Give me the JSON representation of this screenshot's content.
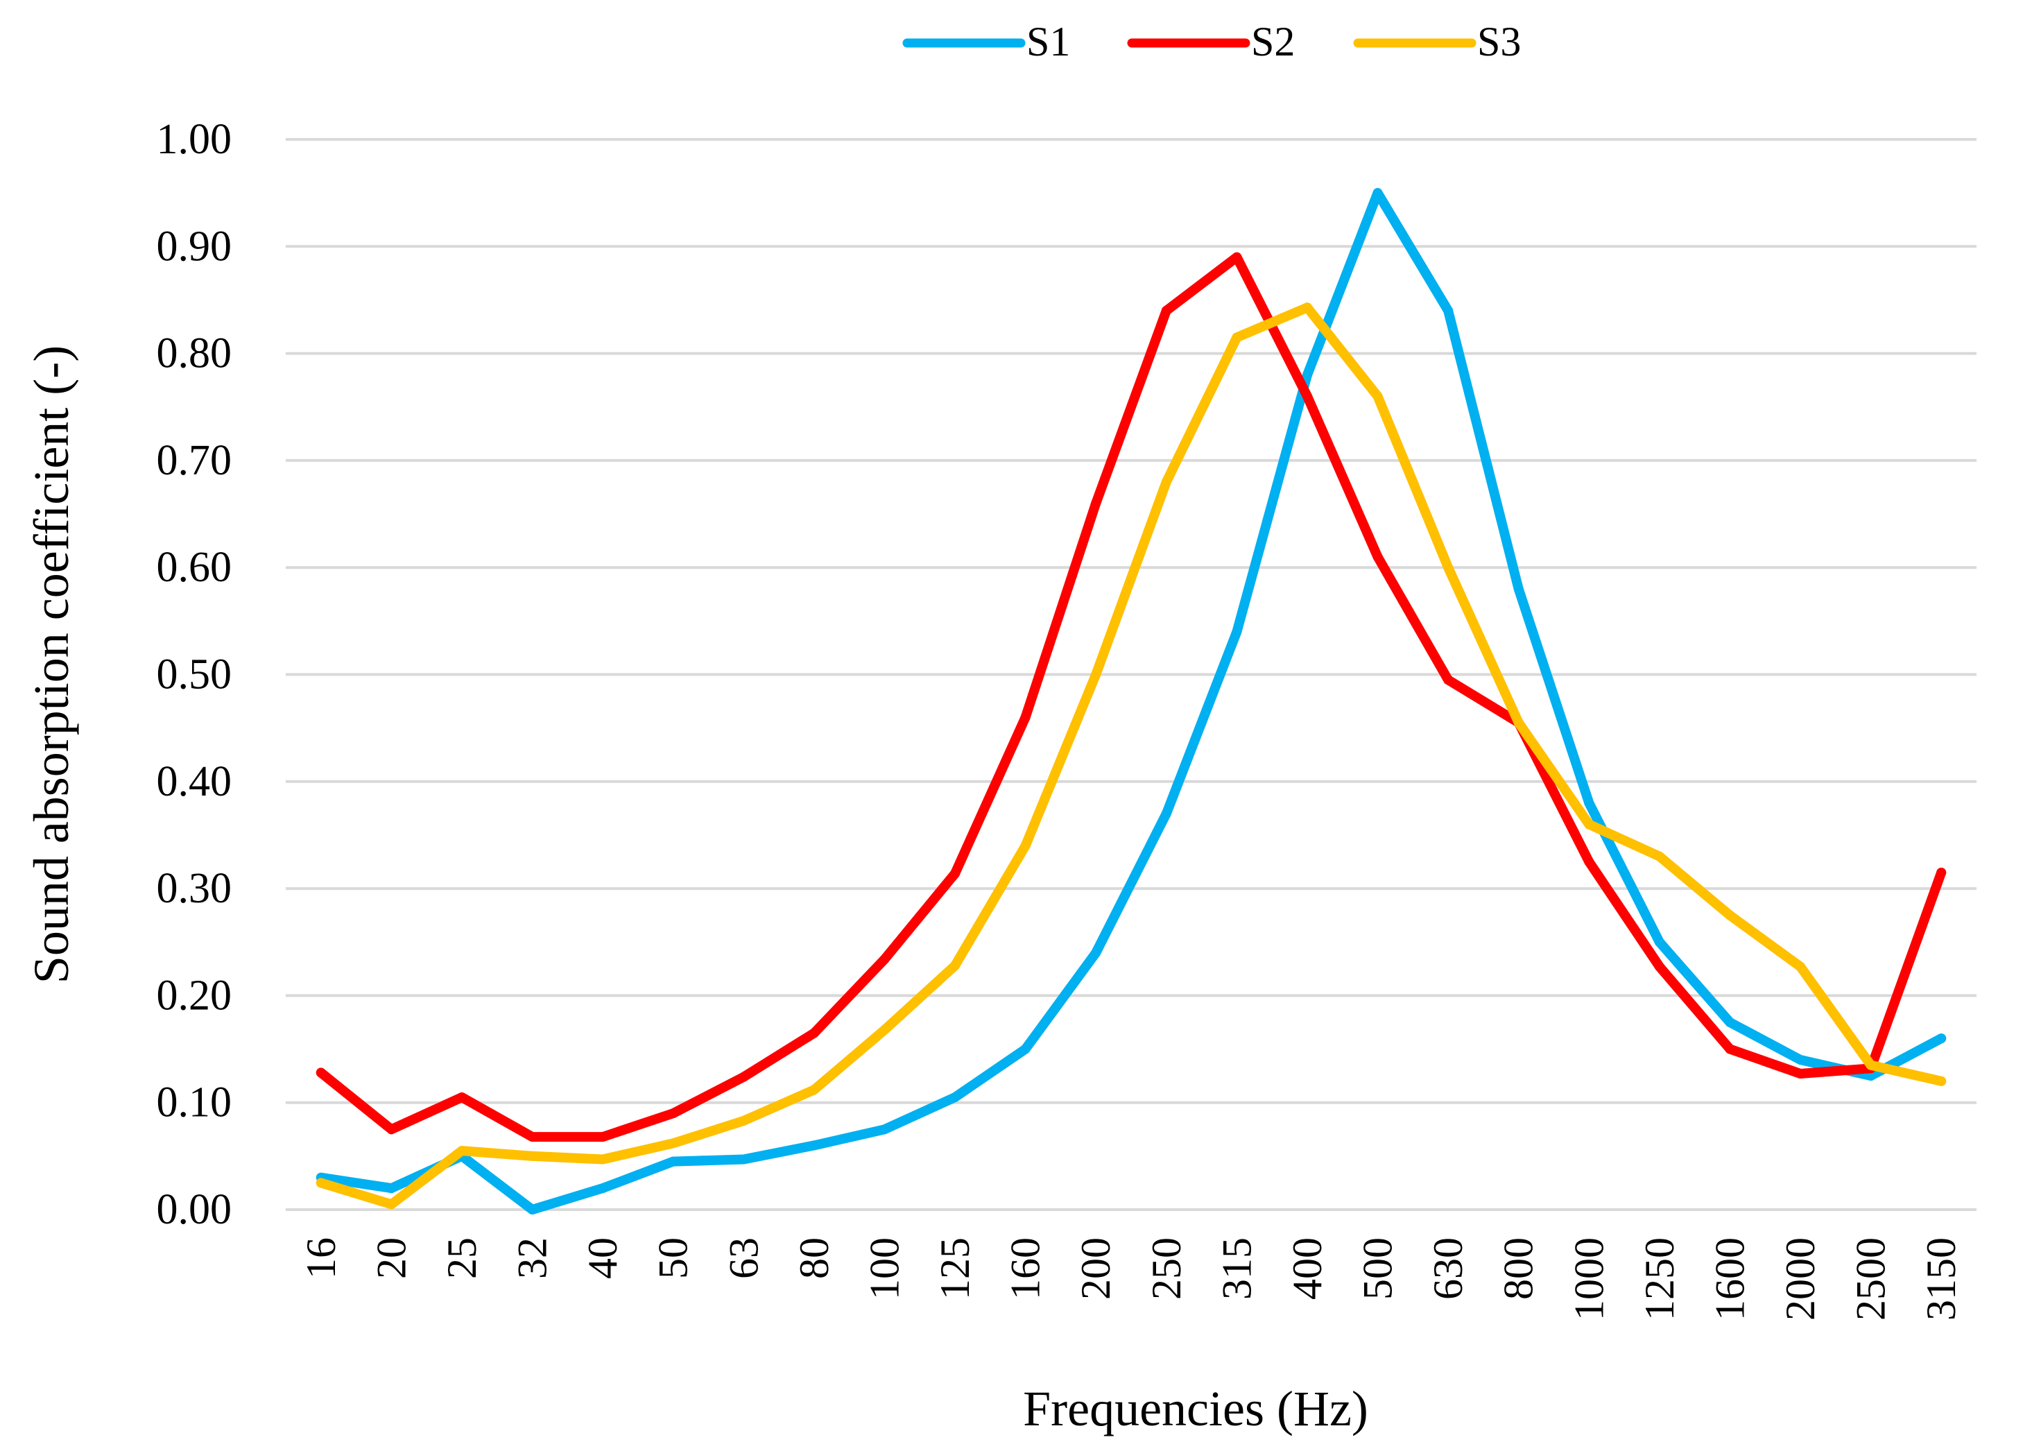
{
  "chart_data": {
    "type": "line",
    "title": "",
    "xlabel": "Frequencies (Hz)",
    "ylabel": "Sound absorption coefficient (-)",
    "ylim": [
      0,
      1
    ],
    "ytick_labels": [
      "0.00",
      "0.10",
      "0.20",
      "0.30",
      "0.40",
      "0.50",
      "0.60",
      "0.70",
      "0.80",
      "0.90",
      "1.00"
    ],
    "grid": true,
    "legend_position": "top-center",
    "categories": [
      "16",
      "20",
      "25",
      "32",
      "40",
      "50",
      "63",
      "80",
      "100",
      "125",
      "160",
      "200",
      "250",
      "315",
      "400",
      "500",
      "630",
      "800",
      "1000",
      "1250",
      "1600",
      "2000",
      "2500",
      "3150"
    ],
    "series": [
      {
        "name": "S1",
        "color": "#00b0f0",
        "values": [
          0.03,
          0.02,
          0.05,
          0.0,
          0.02,
          0.045,
          0.047,
          0.06,
          0.075,
          0.105,
          0.15,
          0.24,
          0.37,
          0.54,
          0.78,
          0.95,
          0.84,
          0.58,
          0.38,
          0.25,
          0.175,
          0.14,
          0.125,
          0.16
        ]
      },
      {
        "name": "S2",
        "color": "#ff0000",
        "values": [
          0.128,
          0.075,
          0.105,
          0.068,
          0.068,
          0.09,
          0.124,
          0.165,
          0.234,
          0.314,
          0.46,
          0.66,
          0.84,
          0.89,
          0.76,
          0.61,
          0.495,
          0.455,
          0.325,
          0.227,
          0.15,
          0.127,
          0.132,
          0.315
        ]
      },
      {
        "name": "S3",
        "color": "#ffc000",
        "values": [
          0.025,
          0.005,
          0.055,
          0.05,
          0.047,
          0.062,
          0.083,
          0.112,
          0.168,
          0.228,
          0.34,
          0.5,
          0.68,
          0.815,
          0.843,
          0.76,
          0.6,
          0.455,
          0.36,
          0.33,
          0.275,
          0.227,
          0.135,
          0.12
        ]
      }
    ]
  }
}
